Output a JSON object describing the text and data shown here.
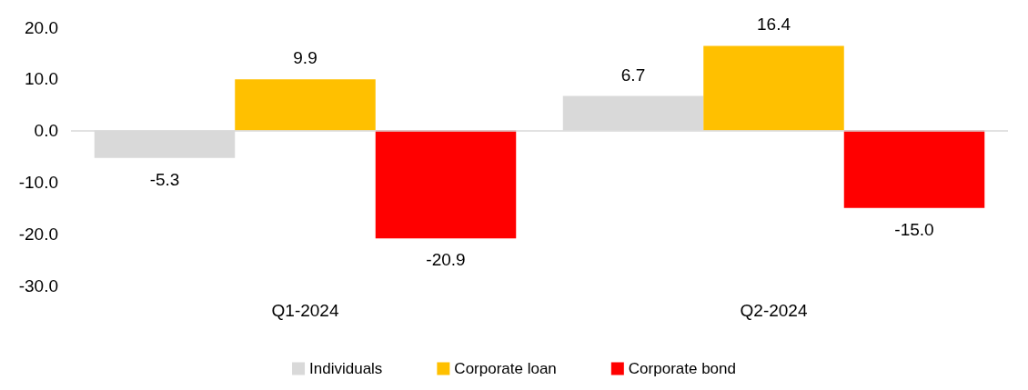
{
  "chart_data": {
    "type": "bar",
    "categories": [
      "Q1-2024",
      "Q2-2024"
    ],
    "series": [
      {
        "name": "Individuals",
        "color": "#d9d9d9",
        "values": [
          -5.3,
          6.7
        ],
        "value_labels": [
          "-5.3",
          "6.7"
        ]
      },
      {
        "name": "Corporate loan",
        "color": "#ffc000",
        "values": [
          9.9,
          16.4
        ],
        "value_labels": [
          "9.9",
          "16.4"
        ]
      },
      {
        "name": "Corporate bond",
        "color": "#ff0000",
        "values": [
          -20.9,
          -15.0
        ],
        "value_labels": [
          "-20.9",
          "-15.0"
        ]
      }
    ],
    "ylim": [
      -30,
      20
    ],
    "yticks": [
      {
        "value": -30,
        "label": "-30.0"
      },
      {
        "value": -20,
        "label": "-20.0"
      },
      {
        "value": -10,
        "label": "-10.0"
      },
      {
        "value": 0,
        "label": "0.0"
      },
      {
        "value": 10,
        "label": "10.0"
      },
      {
        "value": 20,
        "label": "20.0"
      }
    ],
    "ref_lines": [
      {
        "axis": "y",
        "value": 0,
        "color": "#d9d9d9",
        "line_style": "solid"
      }
    ],
    "grid": false,
    "legend": "bottom"
  }
}
